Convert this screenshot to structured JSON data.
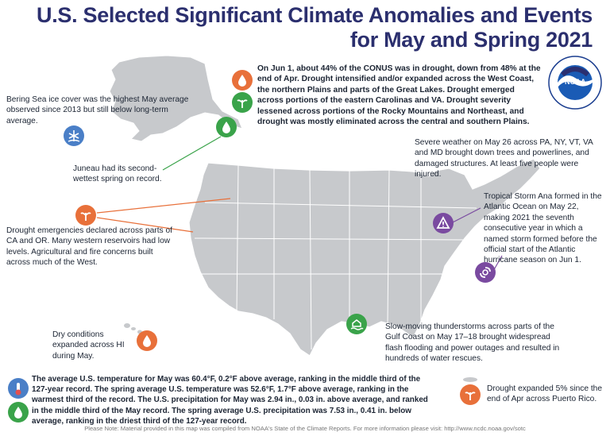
{
  "title": {
    "line1": "U.S. Selected Significant Climate Anomalies and Events",
    "line2": "for May and Spring 2021"
  },
  "colors": {
    "title": "#2b2f6e",
    "drought": "#e8703a",
    "wet": "#3aa34a",
    "ice": "#4a7fc7",
    "storm": "#7a4aa0",
    "map_fill": "#c7c9cc",
    "map_border": "#ffffff"
  },
  "annotations": {
    "bering": "Bering Sea ice cover was the highest May average observed since 2013 but still below long-term average.",
    "drought_conus": "On Jun 1, about 44% of the CONUS was in drought, down from 48% at the end of Apr. Drought intensified and/or expanded across the West Coast, the northern Plains and parts of the Great Lakes. Drought emerged across portions of the eastern Carolinas and VA. Drought severity lessened across portions of the Rocky Mountains and Northeast, and drought was mostly eliminated across the central and southern Plains.",
    "juneau": "Juneau had its second-wettest spring on record.",
    "severe_weather": "Severe weather on May 26 across PA, NY, VT, VA and MD brought down trees and powerlines, and damaged structures. At least five people were injured.",
    "tropical_storm": "Tropical Storm Ana formed in the Atlantic Ocean on May 22, making 2021 the seventh consecutive year in which a named storm formed before the official start of the Atlantic hurricane season on Jun 1.",
    "west_drought": "Drought emergencies declared across parts of CA and OR. Many western reservoirs had low levels. Agricultural and fire concerns built across much of the West.",
    "hawaii": "Dry conditions expanded across HI during May.",
    "gulf": "Slow-moving thunderstorms across parts of the Gulf Coast on May 17–18 brought widespread flash flooding and power outages and resulted in hundreds of water rescues.",
    "temperature_precip": "The average U.S. temperature for May was 60.4°F, 0.2°F above average, ranking in the middle third of the 127-year record. The spring average U.S. temperature was 52.6°F, 1.7°F above average, ranking in the warmest third of the record. The U.S. precipitation for May was 2.94 in., 0.03 in. above average, and ranked in the middle third of the May record. The spring average U.S. precipitation was 7.53 in., 0.41 in. below average, ranking in the driest third of the 127-year record.",
    "puerto_rico": "Drought expanded 5% since the end of Apr across Puerto Rico."
  },
  "logo": {
    "text": "NOAA",
    "ring_text": "NATIONAL OCEANIC AND ATMOSPHERIC ADMINISTRATION · U.S. DEPARTMENT OF COMMERCE"
  },
  "footnote": "Please Note: Material provided in this map was compiled from NOAA's State of the Climate Reports. For more information please visit: http://www.ncdc.noaa.gov/sotc"
}
